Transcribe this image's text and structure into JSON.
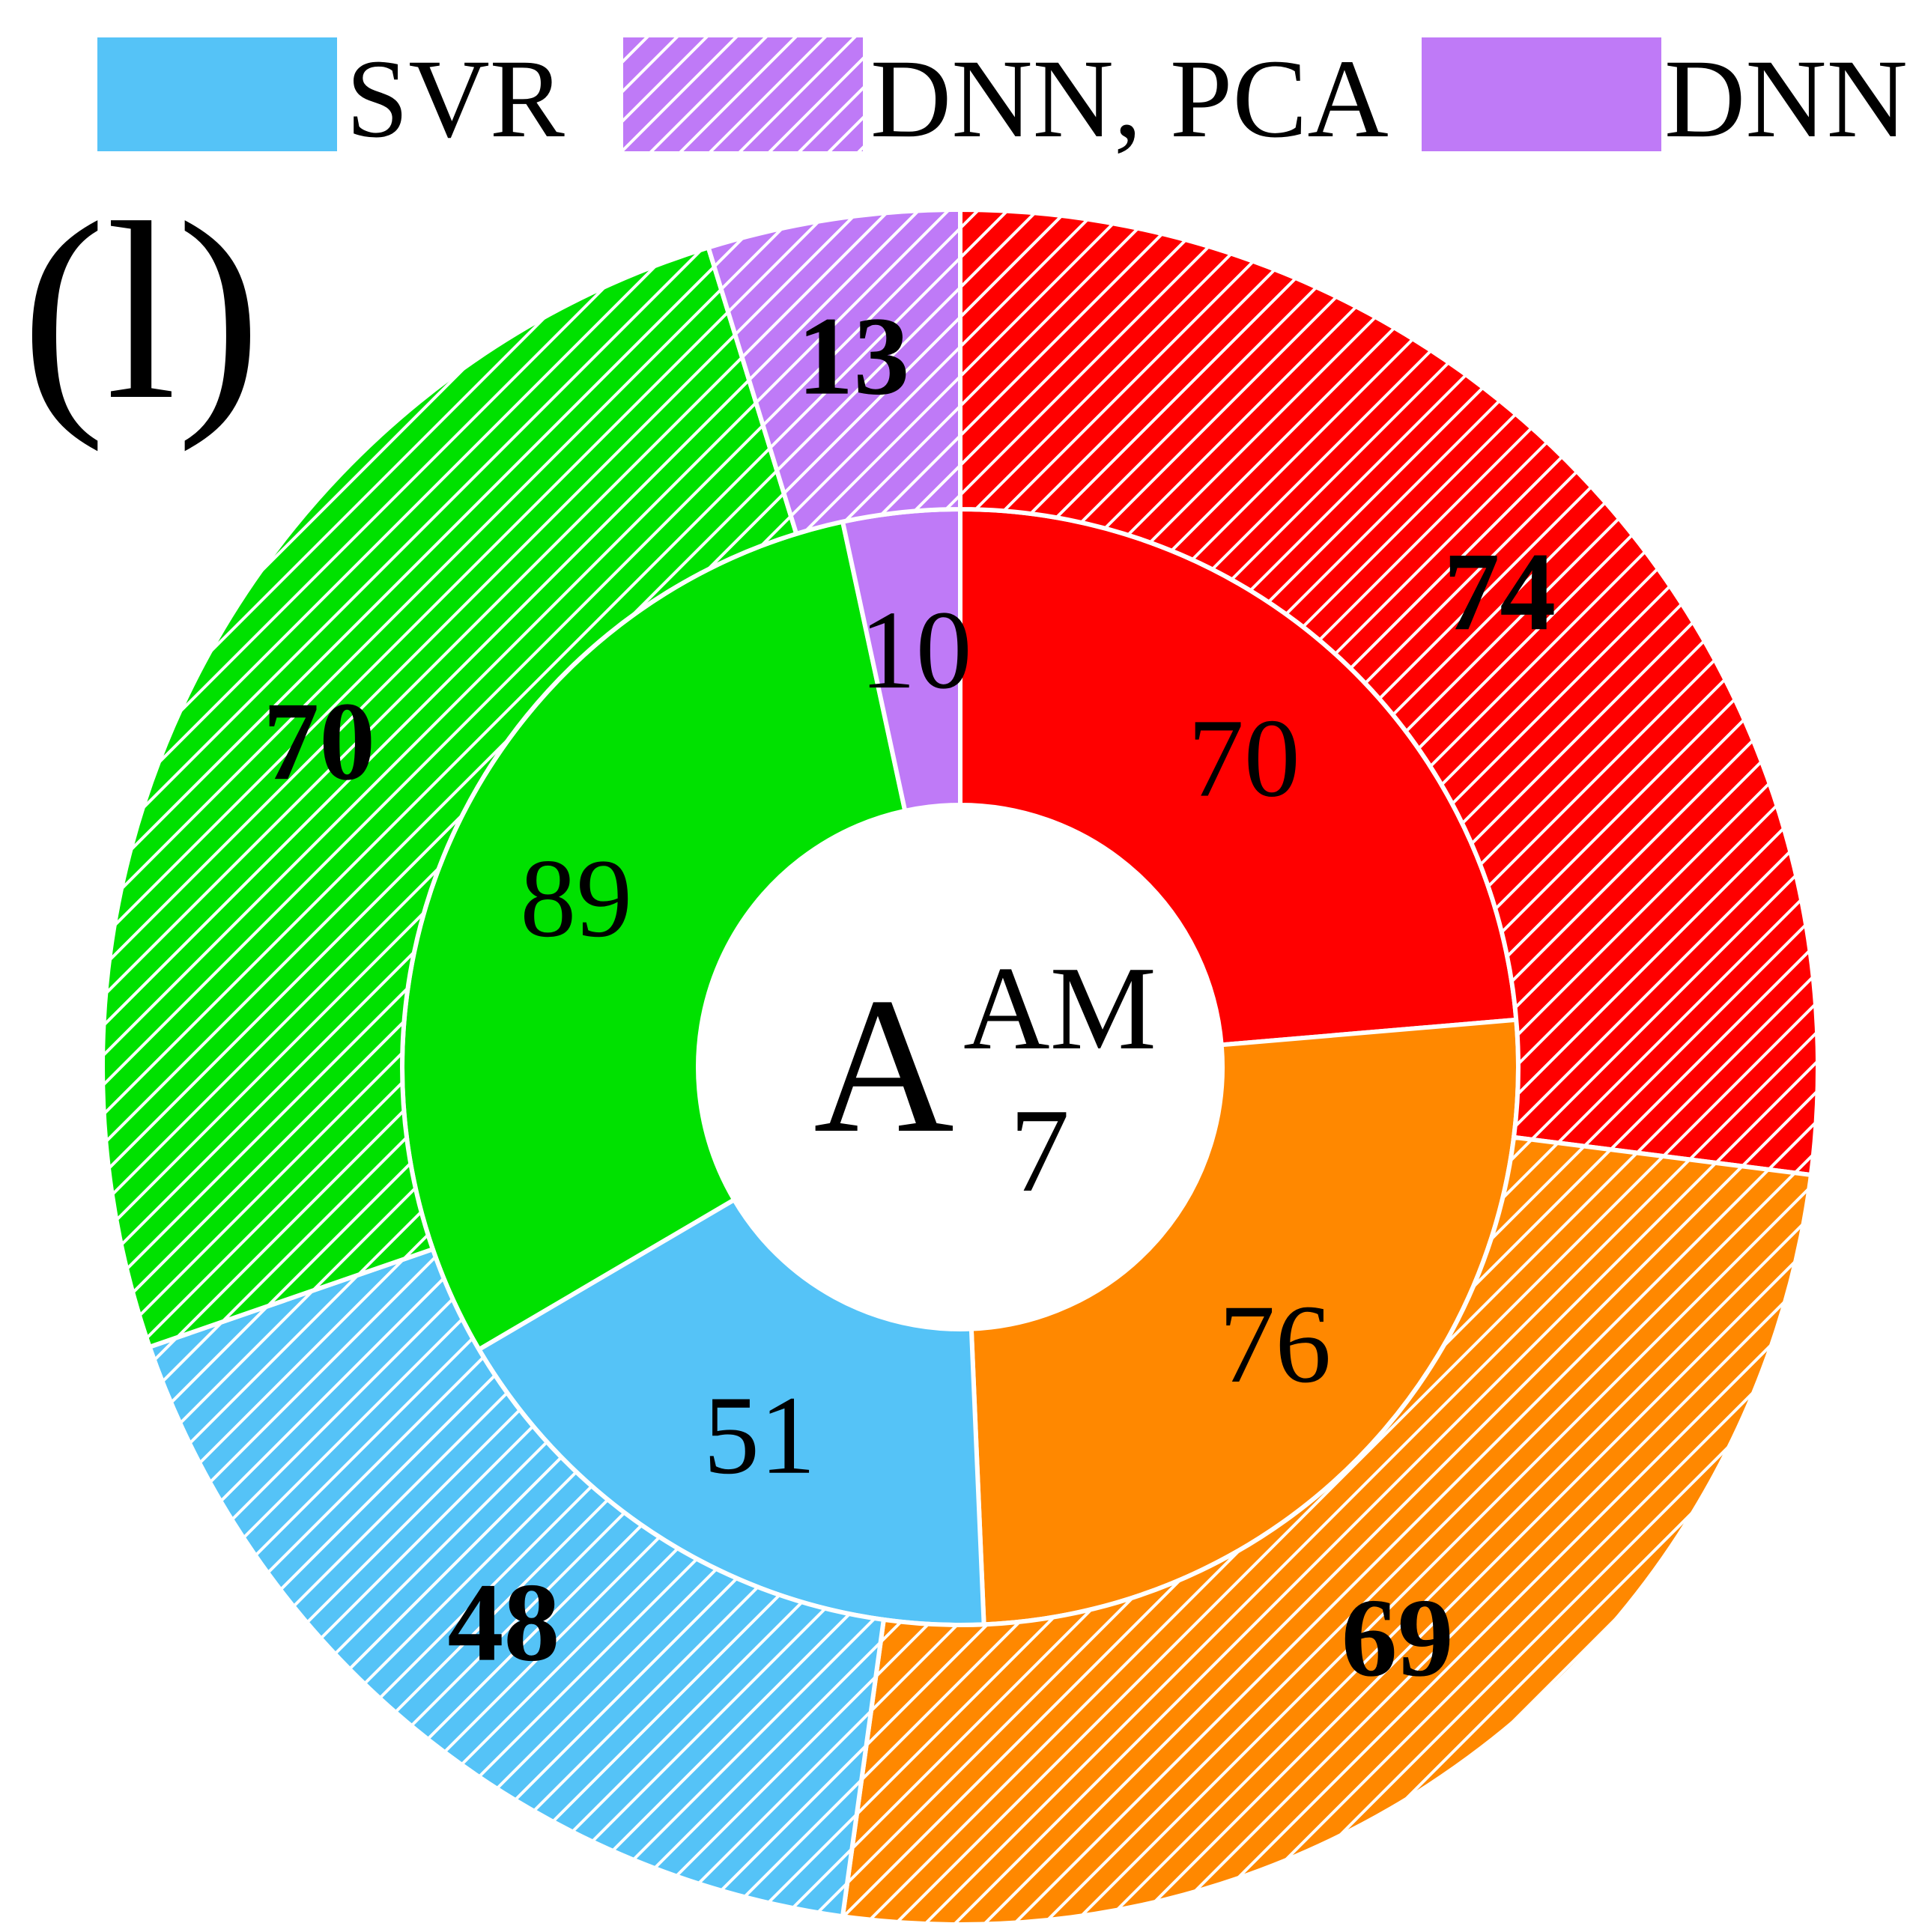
{
  "chart_data": {
    "type": "pie",
    "panel_label": "(l)",
    "center_label": {
      "main": "A",
      "sup": "AM",
      "sub": "7"
    },
    "legend": [
      {
        "label": "SVR",
        "color": "#55c3f7",
        "pattern": "solid"
      },
      {
        "label": "DNN, PCA",
        "color": "#bf7af7",
        "pattern": "hatched"
      },
      {
        "label": "DNN",
        "color": "#bf7af7",
        "pattern": "solid"
      }
    ],
    "rings": [
      {
        "ring": "inner",
        "pattern": "solid",
        "values": [
          70,
          76,
          51,
          89,
          10
        ],
        "colors": [
          "#ff0000",
          "#ff8800",
          "#55c3f7",
          "#00e100",
          "#bf7af7"
        ]
      },
      {
        "ring": "outer",
        "pattern": "hatched",
        "values": [
          74,
          69,
          48,
          70,
          13
        ],
        "colors": [
          "#ff0000",
          "#ff8800",
          "#55c3f7",
          "#00e100",
          "#bf7af7"
        ]
      }
    ]
  }
}
